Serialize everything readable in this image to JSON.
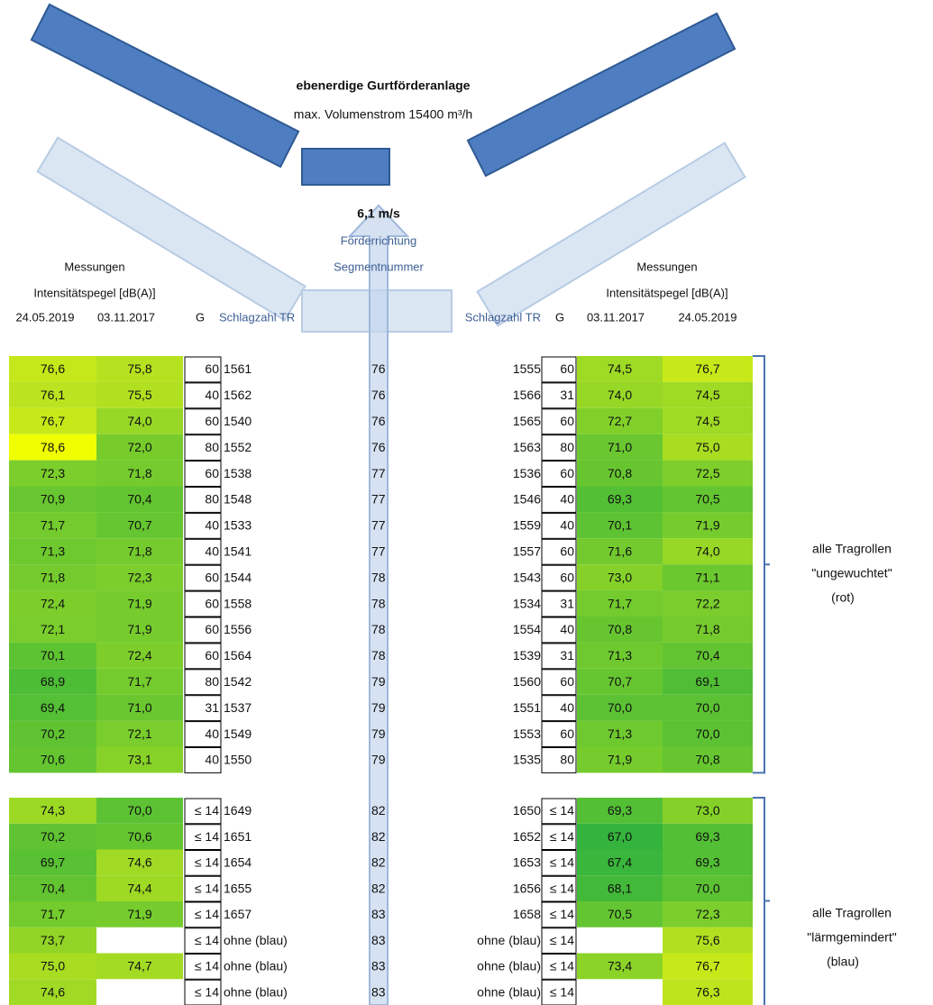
{
  "header": {
    "title": "ebenerdige Gurtförderanlage",
    "subtitle": "max. Volumenstrom 15400 m³/h",
    "speed": "6,1 m/s",
    "direction": "Förderrichtung",
    "segment_label": "Segmentnummer"
  },
  "left": {
    "measurements": "Messungen",
    "intensity": "Intensitätspegel [dB(A)]",
    "date_a": "24.05.2019",
    "date_b": "03.11.2017",
    "g": "G",
    "tr": "Schlagzahl TR"
  },
  "right": {
    "measurements": "Messungen",
    "intensity": "Intensitätspegel [dB(A)]",
    "tr": "Schlagzahl TR",
    "g": "G",
    "date_b": "03.11.2017",
    "date_a": "24.05.2019"
  },
  "groups": [
    {
      "label": [
        "alle Tragrollen",
        "\"ungewuchtet\"",
        "(rot)"
      ],
      "rows": [
        [
          "76,6",
          "75,8",
          "60",
          "1561",
          "76",
          "1555",
          "60",
          "74,5",
          "76,7"
        ],
        [
          "76,1",
          "75,5",
          "40",
          "1562",
          "76",
          "1566",
          "31",
          "74,0",
          "74,5"
        ],
        [
          "76,7",
          "74,0",
          "60",
          "1540",
          "76",
          "1565",
          "60",
          "72,7",
          "74,5"
        ],
        [
          "78,6",
          "72,0",
          "80",
          "1552",
          "76",
          "1563",
          "80",
          "71,0",
          "75,0"
        ],
        [
          "72,3",
          "71,8",
          "60",
          "1538",
          "77",
          "1536",
          "60",
          "70,8",
          "72,5"
        ],
        [
          "70,9",
          "70,4",
          "80",
          "1548",
          "77",
          "1546",
          "40",
          "69,3",
          "70,5"
        ],
        [
          "71,7",
          "70,7",
          "40",
          "1533",
          "77",
          "1559",
          "40",
          "70,1",
          "71,9"
        ],
        [
          "71,3",
          "71,8",
          "40",
          "1541",
          "77",
          "1557",
          "60",
          "71,6",
          "74,0"
        ],
        [
          "71,8",
          "72,3",
          "60",
          "1544",
          "78",
          "1543",
          "60",
          "73,0",
          "71,1"
        ],
        [
          "72,4",
          "71,9",
          "60",
          "1558",
          "78",
          "1534",
          "31",
          "71,7",
          "72,2"
        ],
        [
          "72,1",
          "71,9",
          "60",
          "1556",
          "78",
          "1554",
          "40",
          "70,8",
          "71,8"
        ],
        [
          "70,1",
          "72,4",
          "60",
          "1564",
          "78",
          "1539",
          "31",
          "71,3",
          "70,4"
        ],
        [
          "68,9",
          "71,7",
          "80",
          "1542",
          "79",
          "1560",
          "60",
          "70,7",
          "69,1"
        ],
        [
          "69,4",
          "71,0",
          "31",
          "1537",
          "79",
          "1551",
          "40",
          "70,0",
          "70,0"
        ],
        [
          "70,2",
          "72,1",
          "40",
          "1549",
          "79",
          "1553",
          "60",
          "71,3",
          "70,0"
        ],
        [
          "70,6",
          "73,1",
          "40",
          "1550",
          "79",
          "1535",
          "80",
          "71,9",
          "70,8"
        ]
      ]
    },
    {
      "label": [
        "alle Tragrollen",
        "\"lärmgemindert\"",
        "(blau)"
      ],
      "rows": [
        [
          "74,3",
          "70,0",
          "≤ 14",
          "1649",
          "82",
          "1650",
          "≤ 14",
          "69,3",
          "73,0"
        ],
        [
          "70,2",
          "70,6",
          "≤ 14",
          "1651",
          "82",
          "1652",
          "≤ 14",
          "67,0",
          "69,3"
        ],
        [
          "69,7",
          "74,6",
          "≤ 14",
          "1654",
          "82",
          "1653",
          "≤ 14",
          "67,4",
          "69,3"
        ],
        [
          "70,4",
          "74,4",
          "≤ 14",
          "1655",
          "82",
          "1656",
          "≤ 14",
          "68,1",
          "70,0"
        ],
        [
          "71,7",
          "71,9",
          "≤ 14",
          "1657",
          "83",
          "1658",
          "≤ 14",
          "70,5",
          "72,3"
        ],
        [
          "73,7",
          null,
          "≤ 14",
          "ohne (blau)",
          "83",
          "ohne (blau)",
          "≤ 14",
          null,
          "75,6"
        ],
        [
          "75,0",
          "74,7",
          "≤ 14",
          "ohne (blau)",
          "83",
          "ohne (blau)",
          "≤ 14",
          "73,4",
          "76,7"
        ],
        [
          "74,6",
          null,
          "≤ 14",
          "ohne (blau)",
          "83",
          "ohne (blau)",
          "≤ 14",
          null,
          "76,3"
        ]
      ]
    }
  ]
}
